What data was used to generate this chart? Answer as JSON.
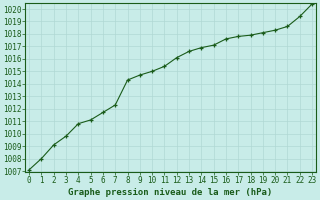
{
  "x_values": [
    0,
    1,
    2,
    3,
    4,
    5,
    6,
    7,
    8,
    9,
    10,
    11,
    12,
    13,
    14,
    15,
    16,
    17,
    18,
    19,
    20,
    21,
    22,
    23
  ],
  "y_values": [
    1007.1,
    1008.0,
    1009.1,
    1009.8,
    1010.8,
    1011.1,
    1011.7,
    1012.3,
    1014.3,
    1014.7,
    1015.0,
    1015.4,
    1016.1,
    1016.6,
    1016.9,
    1017.1,
    1017.6,
    1017.8,
    1017.9,
    1018.1,
    1018.3,
    1018.6,
    1019.4,
    1020.4
  ],
  "y_min": 1007,
  "y_max": 1020,
  "x_min": 0,
  "x_max": 23,
  "line_color": "#1a5c1a",
  "marker_color": "#1a5c1a",
  "bg_color": "#c8ece8",
  "grid_color": "#b0d8d4",
  "xlabel": "Graphe pression niveau de la mer (hPa)",
  "xlabel_color": "#1a5c1a",
  "tick_color": "#1a5c1a",
  "label_fontsize": 5.5,
  "xlabel_fontsize": 6.5,
  "line_width": 0.8,
  "marker_size": 3.5
}
